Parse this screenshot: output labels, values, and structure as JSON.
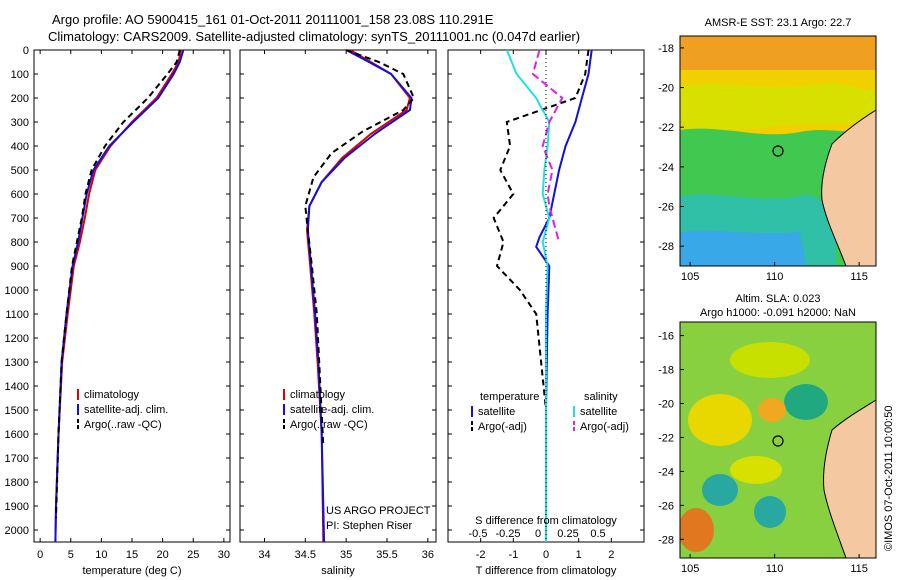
{
  "header": {
    "line1": "Argo profile: AO 5900415_161 01-Oct-2011 20111001_158 23.08S 110.291E",
    "line2": "Climatology: CARS2009. Satellite-adjusted climatology: synTS_20111001.nc (0.047d earlier)"
  },
  "stamp": "©IMOS 07-Oct-2011 10:00:50",
  "colors": {
    "climatology": "#e00000",
    "satellite": "#1010e0",
    "argo": "#000000",
    "sal_satellite": "#22e0e0",
    "sal_argo": "#e020e0"
  },
  "chart_data": [
    {
      "type": "line",
      "id": "temperature",
      "xlabel": "temperature (deg C)",
      "ylabel": "",
      "xlim": [
        -1,
        31
      ],
      "ylim": [
        2050,
        0
      ],
      "xticks": [
        "0",
        "5",
        "10",
        "15",
        "20",
        "25",
        "30"
      ],
      "yticks": [
        "0",
        "100",
        "200",
        "300",
        "400",
        "500",
        "600",
        "700",
        "800",
        "900",
        "1000",
        "1100",
        "1200",
        "1300",
        "1400",
        "1500",
        "1600",
        "1700",
        "1800",
        "1900",
        "2000"
      ],
      "legend": [
        "climatology",
        "satellite-adj. clim.",
        "Argo(..raw -QC)"
      ],
      "series": [
        {
          "name": "climatology",
          "color": "#e00000",
          "dash": "",
          "x": [
            23,
            22.6,
            21.5,
            19,
            15,
            11.5,
            9,
            8,
            7.3,
            6.5,
            5.5,
            4.5,
            3.6,
            3,
            2.6,
            2.5
          ],
          "y": [
            0,
            50,
            100,
            200,
            300,
            400,
            500,
            600,
            700,
            800,
            900,
            1100,
            1300,
            1600,
            1900,
            2050
          ]
        },
        {
          "name": "satellite-adj. clim.",
          "color": "#1010e0",
          "dash": "",
          "x": [
            23.4,
            22.8,
            21.8,
            19.3,
            15.2,
            11.3,
            8.7,
            7.6,
            6.9,
            6.2,
            5.3,
            4.3,
            3.5,
            3,
            2.6,
            2.5
          ],
          "y": [
            0,
            50,
            100,
            200,
            300,
            400,
            500,
            600,
            700,
            800,
            900,
            1100,
            1300,
            1600,
            1900,
            2050
          ]
        },
        {
          "name": "Argo(..raw -QC)",
          "color": "#000000",
          "dash": "6,4",
          "x": [
            22.8,
            22.3,
            20.8,
            17.6,
            13.6,
            10.6,
            8.4,
            7.4,
            6.8,
            6,
            5.2,
            4.3,
            3.5,
            3,
            2.6
          ],
          "y": [
            0,
            50,
            100,
            200,
            300,
            400,
            500,
            600,
            700,
            800,
            900,
            1100,
            1300,
            1600,
            1950
          ]
        }
      ]
    },
    {
      "type": "line",
      "id": "salinity",
      "xlabel": "salinity",
      "xlim": [
        33.7,
        36.1
      ],
      "ylim": [
        2050,
        0
      ],
      "xticks": [
        "34",
        "34.5",
        "35",
        "35.5",
        "36"
      ],
      "legend": [
        "climatology",
        "satellite-adj. clim.",
        "Argo(..raw -QC)"
      ],
      "credit": [
        "US ARGO PROJECT",
        "PI: Stephen Riser"
      ],
      "series": [
        {
          "name": "climatology",
          "color": "#e00000",
          "dash": "",
          "x": [
            35.05,
            35.3,
            35.55,
            35.78,
            35.74,
            35.3,
            34.95,
            34.7,
            34.55,
            34.52,
            34.56,
            34.61,
            34.65,
            34.7,
            34.72
          ],
          "y": [
            0,
            50,
            100,
            200,
            250,
            350,
            450,
            550,
            650,
            750,
            900,
            1100,
            1300,
            1600,
            2050
          ]
        },
        {
          "name": "satellite-adj. clim.",
          "color": "#1010e0",
          "dash": "",
          "x": [
            35.0,
            35.28,
            35.55,
            35.8,
            35.78,
            35.35,
            34.98,
            34.7,
            34.55,
            34.53,
            34.57,
            34.62,
            34.66,
            34.7,
            34.73
          ],
          "y": [
            0,
            50,
            100,
            200,
            250,
            350,
            450,
            550,
            650,
            750,
            900,
            1100,
            1300,
            1600,
            2050
          ]
        },
        {
          "name": "Argo(..raw -QC)",
          "color": "#000000",
          "dash": "6,4",
          "x": [
            35.0,
            35.4,
            35.7,
            35.83,
            35.7,
            35.2,
            34.82,
            34.6,
            34.5,
            34.53,
            34.58,
            34.64,
            34.67,
            34.72
          ],
          "y": [
            0,
            50,
            100,
            200,
            250,
            340,
            430,
            530,
            650,
            750,
            900,
            1100,
            1300,
            1650
          ]
        }
      ]
    },
    {
      "type": "line",
      "id": "difference",
      "xlabel": "T difference from climatology",
      "xlabel_top": "S difference from climatology",
      "xlim": [
        -3,
        3
      ],
      "ylim": [
        2050,
        0
      ],
      "xticks": [
        "-2",
        "-1",
        "0",
        "1",
        "2"
      ],
      "xticks_top": [
        "-0.5",
        "-0.25",
        "0",
        "0.25",
        "0.5"
      ],
      "legend_left": [
        "temperature",
        "satellite",
        "Argo(-adj)"
      ],
      "legend_right": [
        "salinity",
        "satellite",
        "Argo(-adj)"
      ],
      "series": [
        {
          "name": "satellite",
          "color": "#1010e0",
          "dash": "",
          "x": [
            1.4,
            1.3,
            1.1,
            0.9,
            0.6,
            0.4,
            0.25,
            0.1,
            -0.2,
            -0.3,
            0.1,
            0.05,
            0,
            0
          ],
          "y": [
            0,
            100,
            200,
            300,
            400,
            500,
            600,
            700,
            780,
            820,
            900,
            1100,
            1500,
            2000
          ]
        },
        {
          "name": "Argo(-adj)",
          "color": "#000000",
          "dash": "6,4",
          "x": [
            1.3,
            1.2,
            0.9,
            -1.2,
            -1.1,
            -1.4,
            -1.0,
            -1.6,
            -1.3,
            -1.5,
            -0.8,
            -0.3,
            0,
            0
          ],
          "y": [
            0,
            100,
            200,
            300,
            400,
            500,
            600,
            700,
            800,
            900,
            1000,
            1100,
            1500,
            1950
          ]
        },
        {
          "name": "salinity satellite",
          "color": "#22e0e0",
          "dash": "",
          "x": [
            -1.2,
            -0.9,
            -0.3,
            0.1,
            0.05,
            -0.05,
            -0.1,
            0.1,
            -0.1,
            0.05,
            0,
            0,
            0
          ],
          "y": [
            0,
            100,
            200,
            300,
            400,
            500,
            600,
            700,
            800,
            900,
            1100,
            1500,
            2050
          ]
        },
        {
          "name": "salinity Argo(-adj)",
          "color": "#e020e0",
          "dash": "8,4",
          "x": [
            -0.2,
            -0.4,
            0.5,
            0.1,
            -0.1,
            0.2,
            0.05,
            0.1,
            0.2,
            0.3,
            0.4
          ],
          "y": [
            0,
            100,
            200,
            300,
            400,
            500,
            600,
            650,
            700,
            750,
            800
          ]
        }
      ]
    },
    {
      "type": "heatmap",
      "id": "sst",
      "title": "AMSR-E SST: 23.1  Argo: 22.7",
      "xticks": [
        "105",
        "110",
        "115"
      ],
      "yticks": [
        "-18",
        "-20",
        "-22",
        "-24",
        "-26",
        "-28"
      ]
    },
    {
      "type": "heatmap",
      "id": "sla",
      "title_line1": "Altim. SLA: 0.023",
      "title_line2": "Argo h1000: -0.091  h2000: NaN",
      "xticks": [
        "105",
        "110",
        "115"
      ],
      "yticks": [
        "-16",
        "-18",
        "-20",
        "-22",
        "-24",
        "-26",
        "-28"
      ]
    }
  ]
}
